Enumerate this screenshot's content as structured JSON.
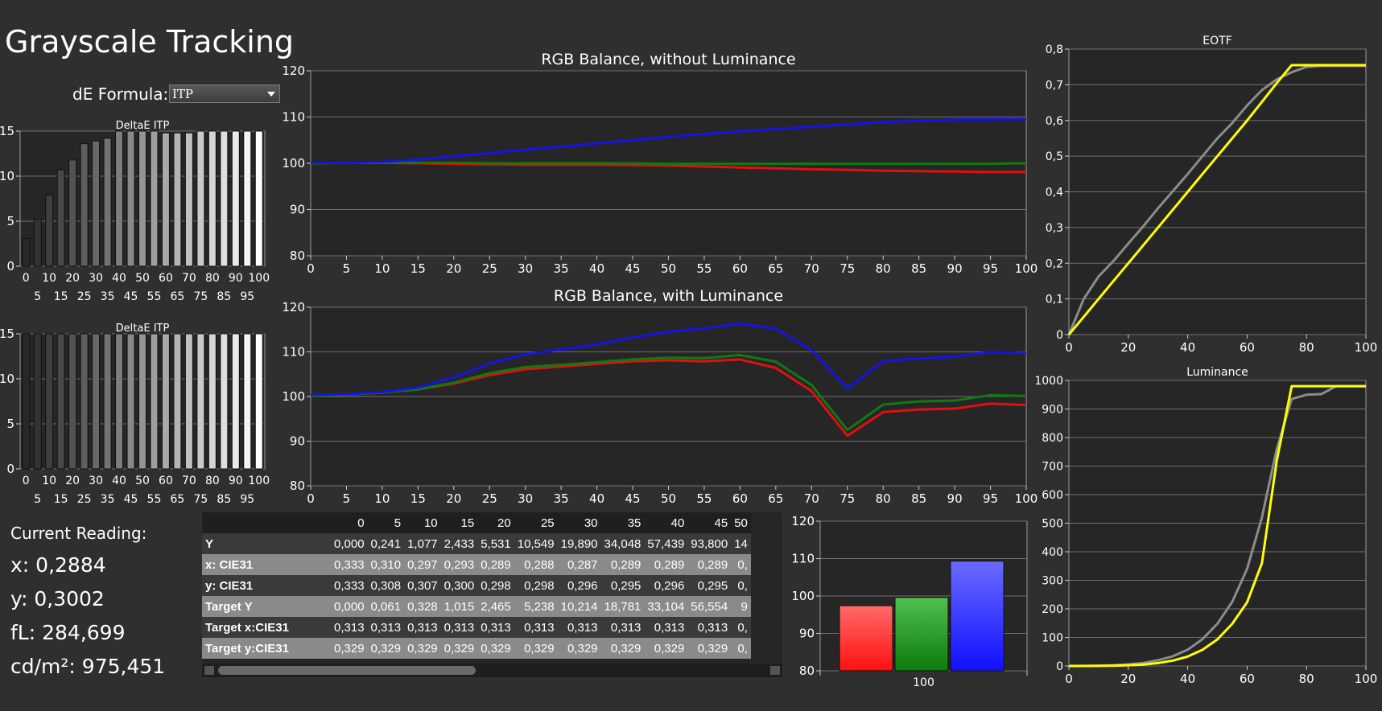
{
  "page": {
    "title": "Grayscale Tracking",
    "de_formula_label": "dE Formula:",
    "de_formula_value": "ITP"
  },
  "reading": {
    "heading": "Current Reading:",
    "x": "x: 0,2884",
    "y": "y: 0,3002",
    "fl": "fL: 284,699",
    "cdm2": "cd/m²: 975,451"
  },
  "colors": {
    "red": "#e01010",
    "green": "#107a10",
    "blue": "#1414e6",
    "yellow": "#ffff00",
    "gray_curve": "#8c8c8c",
    "plot_bg": "#262626",
    "grid": "#707070"
  },
  "table": {
    "headers": [
      "",
      "0",
      "5",
      "10",
      "15",
      "20",
      "25",
      "30",
      "35",
      "40",
      "45",
      "50"
    ],
    "rows": [
      {
        "label": "Y",
        "values": [
          "0,000",
          "0,241",
          "1,077",
          "2,433",
          "5,531",
          "10,549",
          "19,890",
          "34,048",
          "57,439",
          "93,800",
          "14"
        ]
      },
      {
        "label": "x: CIE31",
        "values": [
          "0,333",
          "0,310",
          "0,297",
          "0,293",
          "0,289",
          "0,288",
          "0,287",
          "0,289",
          "0,289",
          "0,289",
          "0,"
        ]
      },
      {
        "label": "y: CIE31",
        "values": [
          "0,333",
          "0,308",
          "0,307",
          "0,300",
          "0,298",
          "0,298",
          "0,296",
          "0,295",
          "0,296",
          "0,295",
          "0,"
        ]
      },
      {
        "label": "Target Y",
        "values": [
          "0,000",
          "0,061",
          "0,328",
          "1,015",
          "2,465",
          "5,238",
          "10,214",
          "18,781",
          "33,104",
          "56,554",
          "9"
        ]
      },
      {
        "label": "Target x:CIE31",
        "values": [
          "0,313",
          "0,313",
          "0,313",
          "0,313",
          "0,313",
          "0,313",
          "0,313",
          "0,313",
          "0,313",
          "0,313",
          "0,"
        ]
      },
      {
        "label": "Target y:CIE31",
        "values": [
          "0,329",
          "0,329",
          "0,329",
          "0,329",
          "0,329",
          "0,329",
          "0,329",
          "0,329",
          "0,329",
          "0,329",
          "0,"
        ]
      }
    ]
  },
  "chart_data": [
    {
      "id": "deltae1",
      "type": "bar",
      "title": "DeltaE ITP",
      "categories": [
        0,
        5,
        10,
        15,
        20,
        25,
        30,
        35,
        40,
        45,
        50,
        55,
        60,
        65,
        70,
        75,
        80,
        85,
        90,
        95,
        100
      ],
      "tick_labels_top": [
        "0",
        "10",
        "20",
        "30",
        "40",
        "50",
        "60",
        "70",
        "80",
        "90",
        "100"
      ],
      "tick_labels_bottom": [
        "5",
        "15",
        "25",
        "35",
        "45",
        "55",
        "65",
        "75",
        "85",
        "95"
      ],
      "values": [
        3.1,
        5.2,
        7.9,
        10.7,
        11.8,
        13.6,
        13.9,
        14.2,
        15,
        15,
        15,
        15,
        14.8,
        14.8,
        14.8,
        15,
        15,
        15,
        15,
        15,
        15
      ],
      "ylim": [
        0,
        15
      ],
      "yticks": [
        "0",
        "5",
        "10",
        "15"
      ]
    },
    {
      "id": "deltae2",
      "type": "bar",
      "title": "DeltaE ITP",
      "categories": [
        0,
        5,
        10,
        15,
        20,
        25,
        30,
        35,
        40,
        45,
        50,
        55,
        60,
        65,
        70,
        75,
        80,
        85,
        90,
        95,
        100
      ],
      "tick_labels_top": [
        "0",
        "10",
        "20",
        "30",
        "40",
        "50",
        "60",
        "70",
        "80",
        "90",
        "100"
      ],
      "tick_labels_bottom": [
        "5",
        "15",
        "25",
        "35",
        "45",
        "55",
        "65",
        "75",
        "85",
        "95"
      ],
      "values": [
        15,
        15,
        15,
        15,
        15,
        15,
        15,
        15,
        15,
        15,
        15,
        15,
        15,
        15,
        15,
        15,
        15,
        15,
        15,
        15,
        15
      ],
      "ylim": [
        0,
        15
      ],
      "yticks": [
        "0",
        "5",
        "10",
        "15"
      ]
    },
    {
      "id": "rgb1",
      "type": "line",
      "title": "RGB Balance, without Luminance",
      "x": [
        0,
        5,
        10,
        15,
        20,
        25,
        30,
        35,
        40,
        45,
        50,
        55,
        60,
        65,
        70,
        75,
        80,
        85,
        90,
        95,
        100
      ],
      "xticks": [
        "0",
        "5",
        "10",
        "15",
        "20",
        "25",
        "30",
        "35",
        "40",
        "45",
        "50",
        "55",
        "60",
        "65",
        "70",
        "75",
        "80",
        "85",
        "90",
        "95",
        "100"
      ],
      "ylim": [
        80,
        120
      ],
      "yticks": [
        "80",
        "90",
        "100",
        "110",
        "120"
      ],
      "series": [
        {
          "color": "red",
          "values": [
            100,
            100.1,
            100.1,
            100,
            99.9,
            99.8,
            99.7,
            99.7,
            99.7,
            99.6,
            99.5,
            99.3,
            99.1,
            98.9,
            98.7,
            98.6,
            98.4,
            98.3,
            98.2,
            98.1,
            98.1
          ]
        },
        {
          "color": "green",
          "values": [
            100,
            100.1,
            100.1,
            100.1,
            100.1,
            100,
            100,
            100,
            100,
            100,
            99.9,
            99.9,
            99.9,
            99.9,
            99.9,
            99.9,
            99.9,
            99.9,
            99.9,
            99.9,
            100
          ]
        },
        {
          "color": "blue",
          "values": [
            100.1,
            100.1,
            100.3,
            100.8,
            101.5,
            102.2,
            102.9,
            103.6,
            104.3,
            105,
            105.7,
            106.3,
            106.9,
            107.4,
            107.9,
            108.4,
            108.9,
            109.2,
            109.4,
            109.5,
            109.6
          ]
        }
      ]
    },
    {
      "id": "rgb2",
      "type": "line",
      "title": "RGB Balance, with Luminance",
      "x": [
        0,
        5,
        10,
        15,
        20,
        25,
        30,
        35,
        40,
        45,
        50,
        55,
        60,
        65,
        70,
        75,
        80,
        85,
        90,
        95,
        100
      ],
      "xticks": [
        "0",
        "5",
        "10",
        "15",
        "20",
        "25",
        "30",
        "35",
        "40",
        "45",
        "50",
        "55",
        "60",
        "65",
        "70",
        "75",
        "80",
        "85",
        "90",
        "95",
        "100"
      ],
      "ylim": [
        80,
        120
      ],
      "yticks": [
        "80",
        "90",
        "100",
        "110",
        "120"
      ],
      "series": [
        {
          "color": "red",
          "values": [
            100.2,
            100.4,
            100.9,
            101.6,
            102.9,
            104.8,
            106.1,
            106.7,
            107.3,
            107.9,
            108.1,
            107.9,
            108.3,
            106.4,
            101.2,
            91.2,
            96.5,
            97.1,
            97.3,
            98.4,
            98.1
          ]
        },
        {
          "color": "green",
          "values": [
            100.2,
            100.4,
            100.9,
            101.6,
            103.1,
            105.2,
            106.6,
            107.1,
            107.7,
            108.3,
            108.7,
            108.6,
            109.3,
            107.8,
            102.6,
            92.5,
            98.2,
            98.9,
            99.1,
            100.3,
            100.1
          ]
        },
        {
          "color": "blue",
          "values": [
            100.4,
            100.5,
            101,
            102,
            104.3,
            107.4,
            109.5,
            110.5,
            111.7,
            113.2,
            114.5,
            115.3,
            116.3,
            115.2,
            110.4,
            101.8,
            107.9,
            108.5,
            108.9,
            110,
            109.7
          ]
        }
      ]
    },
    {
      "id": "current",
      "type": "bar",
      "categories": [
        "100"
      ],
      "ylim": [
        80,
        120
      ],
      "yticks": [
        "80",
        "90",
        "100",
        "110",
        "120"
      ],
      "series": [
        {
          "color": "red",
          "values": [
            97.4
          ]
        },
        {
          "color": "green",
          "values": [
            99.6
          ]
        },
        {
          "color": "blue",
          "values": [
            109.3
          ]
        }
      ]
    },
    {
      "id": "eotf",
      "type": "line",
      "title": "EOTF",
      "x": [
        0,
        5,
        10,
        15,
        20,
        25,
        30,
        35,
        40,
        45,
        50,
        55,
        60,
        65,
        70,
        75,
        80,
        85,
        90,
        95,
        100
      ],
      "xticks": [
        "0",
        "20",
        "40",
        "60",
        "80",
        "100"
      ],
      "ylim": [
        0,
        0.8
      ],
      "yticks": [
        "0",
        "0,1",
        "0,2",
        "0,3",
        "0,4",
        "0,5",
        "0,6",
        "0,7",
        "0,8"
      ],
      "series": [
        {
          "color": "gray_curve",
          "name": "",
          "values": [
            0,
            0.1,
            0.163,
            0.206,
            0.255,
            0.303,
            0.354,
            0.402,
            0.45,
            0.5,
            0.55,
            0.593,
            0.642,
            0.685,
            0.715,
            0.735,
            0.75,
            0.753,
            0.753,
            0.753,
            0.753
          ]
        },
        {
          "color": "yellow",
          "name": "",
          "values": [
            0,
            0.05,
            0.1,
            0.15,
            0.2,
            0.25,
            0.3,
            0.35,
            0.4,
            0.45,
            0.5,
            0.55,
            0.6,
            0.652,
            0.705,
            0.755,
            0.755,
            0.755,
            0.755,
            0.755,
            0.755
          ]
        }
      ]
    },
    {
      "id": "luminance",
      "type": "line",
      "title": "Luminance",
      "x": [
        0,
        5,
        10,
        15,
        20,
        25,
        30,
        35,
        40,
        45,
        50,
        55,
        60,
        65,
        70,
        75,
        80,
        85,
        90,
        95,
        100
      ],
      "xticks": [
        "0",
        "20",
        "40",
        "60",
        "80",
        "100"
      ],
      "ylim": [
        0,
        1000
      ],
      "yticks": [
        "0",
        "100",
        "200",
        "300",
        "400",
        "500",
        "600",
        "700",
        "800",
        "900",
        "1000"
      ],
      "series": [
        {
          "color": "gray_curve",
          "name": "",
          "values": [
            0,
            0.3,
            1.1,
            2.5,
            5.5,
            10.5,
            20,
            34,
            57,
            94,
            148,
            225,
            340,
            520,
            760,
            935,
            950,
            952,
            980,
            980,
            980
          ]
        },
        {
          "color": "yellow",
          "name": "",
          "values": [
            0,
            0.1,
            0.3,
            1,
            2.5,
            5.2,
            10.2,
            18.8,
            33,
            56.6,
            93,
            148,
            223,
            360,
            720,
            980,
            980,
            980,
            980,
            980,
            980
          ]
        }
      ]
    }
  ]
}
